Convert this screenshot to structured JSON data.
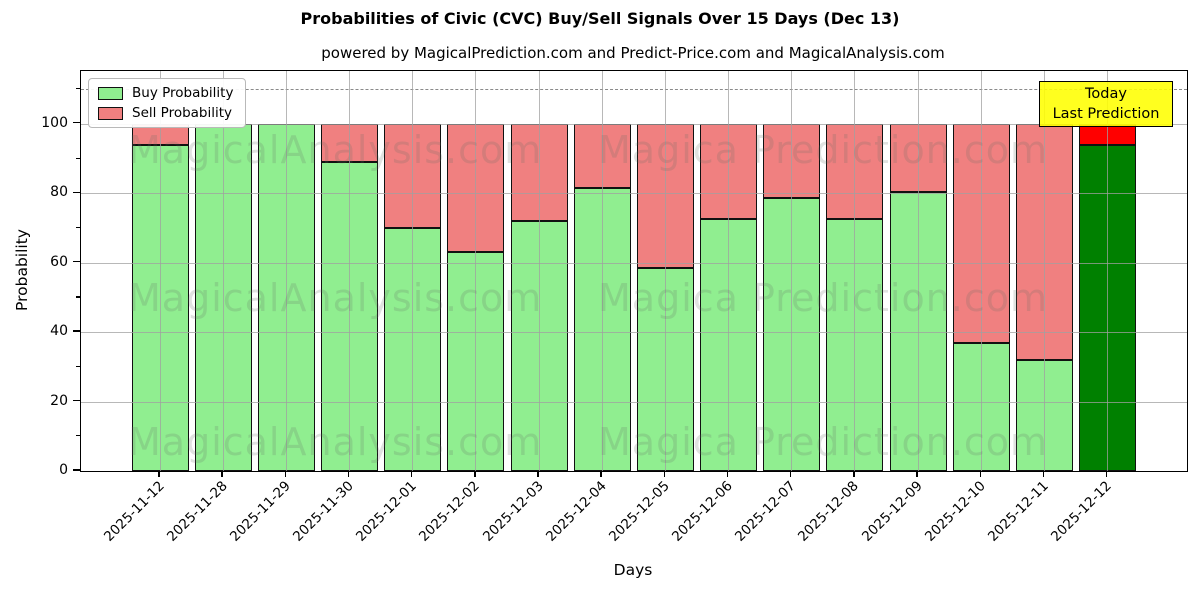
{
  "title": "Probabilities of Civic (CVC) Buy/Sell Signals Over 15 Days (Dec 13)",
  "subtitle": "powered by MagicalPrediction.com and Predict-Price.com and MagicalAnalysis.com",
  "xlabel": "Days",
  "ylabel": "Probability",
  "annotation": {
    "line1": "Today",
    "line2": "Last Prediction",
    "bg": "#ffff00"
  },
  "legend": [
    {
      "label": "Buy Probability",
      "color": "#90ee90"
    },
    {
      "label": "Sell Probability",
      "color": "#f08080"
    }
  ],
  "watermarks": {
    "left_text": "MagicalAnalysis.com",
    "right_text": "Magica Prediction.com"
  },
  "colors": {
    "buy": "#90ee90",
    "sell": "#f08080",
    "buy_today": "#008000",
    "sell_today": "#ff0000",
    "grid": "#a0a0a0",
    "annotation_bg": "#ffff00"
  },
  "chart_data": {
    "type": "bar",
    "stacked": true,
    "title": "Probabilities of Civic (CVC) Buy/Sell Signals Over 15 Days (Dec 13)",
    "xlabel": "Days",
    "ylabel": "Probability",
    "categories": [
      "2025-11-12",
      "2025-11-28",
      "2025-11-29",
      "2025-11-30",
      "2025-12-01",
      "2025-12-02",
      "2025-12-03",
      "2025-12-04",
      "2025-12-05",
      "2025-12-06",
      "2025-12-07",
      "2025-12-08",
      "2025-12-09",
      "2025-12-10",
      "2025-12-11",
      "2025-12-12"
    ],
    "series": [
      {
        "name": "Buy Probability",
        "values": [
          94,
          100,
          100,
          89,
          70,
          63,
          72,
          81.5,
          58.5,
          72.5,
          78.5,
          72.5,
          80.5,
          37,
          32,
          94
        ]
      },
      {
        "name": "Sell Probability",
        "values": [
          6,
          0,
          0,
          11,
          30,
          37,
          28,
          18.5,
          41.5,
          27.5,
          21.5,
          27.5,
          19.5,
          63,
          68,
          6
        ]
      }
    ],
    "today_index": 15,
    "yticks": [
      0,
      20,
      40,
      60,
      80,
      100
    ],
    "ylim": [
      0,
      115.2
    ],
    "dashed_line_y": 110,
    "grid": true,
    "legend_position": "upper left"
  }
}
